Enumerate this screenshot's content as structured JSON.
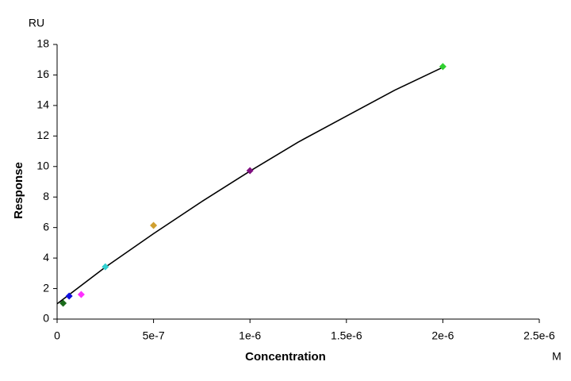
{
  "chart_data": {
    "type": "scatter",
    "y_unit": "RU",
    "x_unit": "M",
    "ylabel": "Response",
    "xlabel": "Concentration",
    "xlim": [
      0,
      2.5e-06
    ],
    "ylim": [
      0,
      18
    ],
    "xticks": [
      0,
      {
        "value": 5e-07,
        "label": "5e-7"
      },
      {
        "value": 1e-06,
        "label": "1e-6"
      },
      {
        "value": 1.5e-06,
        "label": "1.5e-6"
      },
      {
        "value": 2e-06,
        "label": "2e-6"
      },
      {
        "value": 2.5e-06,
        "label": "2.5e-6"
      }
    ],
    "yticks": [
      0,
      2,
      4,
      6,
      8,
      10,
      12,
      14,
      16,
      18
    ],
    "points": {
      "x": [
        3.125e-08,
        6.25e-08,
        1.25e-07,
        2.5e-07,
        5e-07,
        1e-06,
        2e-06
      ],
      "values": [
        1.04,
        1.51,
        1.61,
        3.43,
        6.14,
        9.73,
        16.55
      ],
      "colors": [
        "#1a6b1a",
        "#1010e0",
        "#ff30ff",
        "#30d0d0",
        "#d0a030",
        "#801080",
        "#30d030"
      ]
    },
    "fit": {
      "color": "#000000",
      "x": [
        0,
        2.5e-07,
        5e-07,
        7.5e-07,
        1e-06,
        1.25e-06,
        1.5e-06,
        1.75e-06,
        2e-06
      ],
      "values": [
        1.0,
        3.4,
        5.6,
        7.7,
        9.7,
        11.6,
        13.3,
        15.0,
        16.5
      ]
    }
  }
}
